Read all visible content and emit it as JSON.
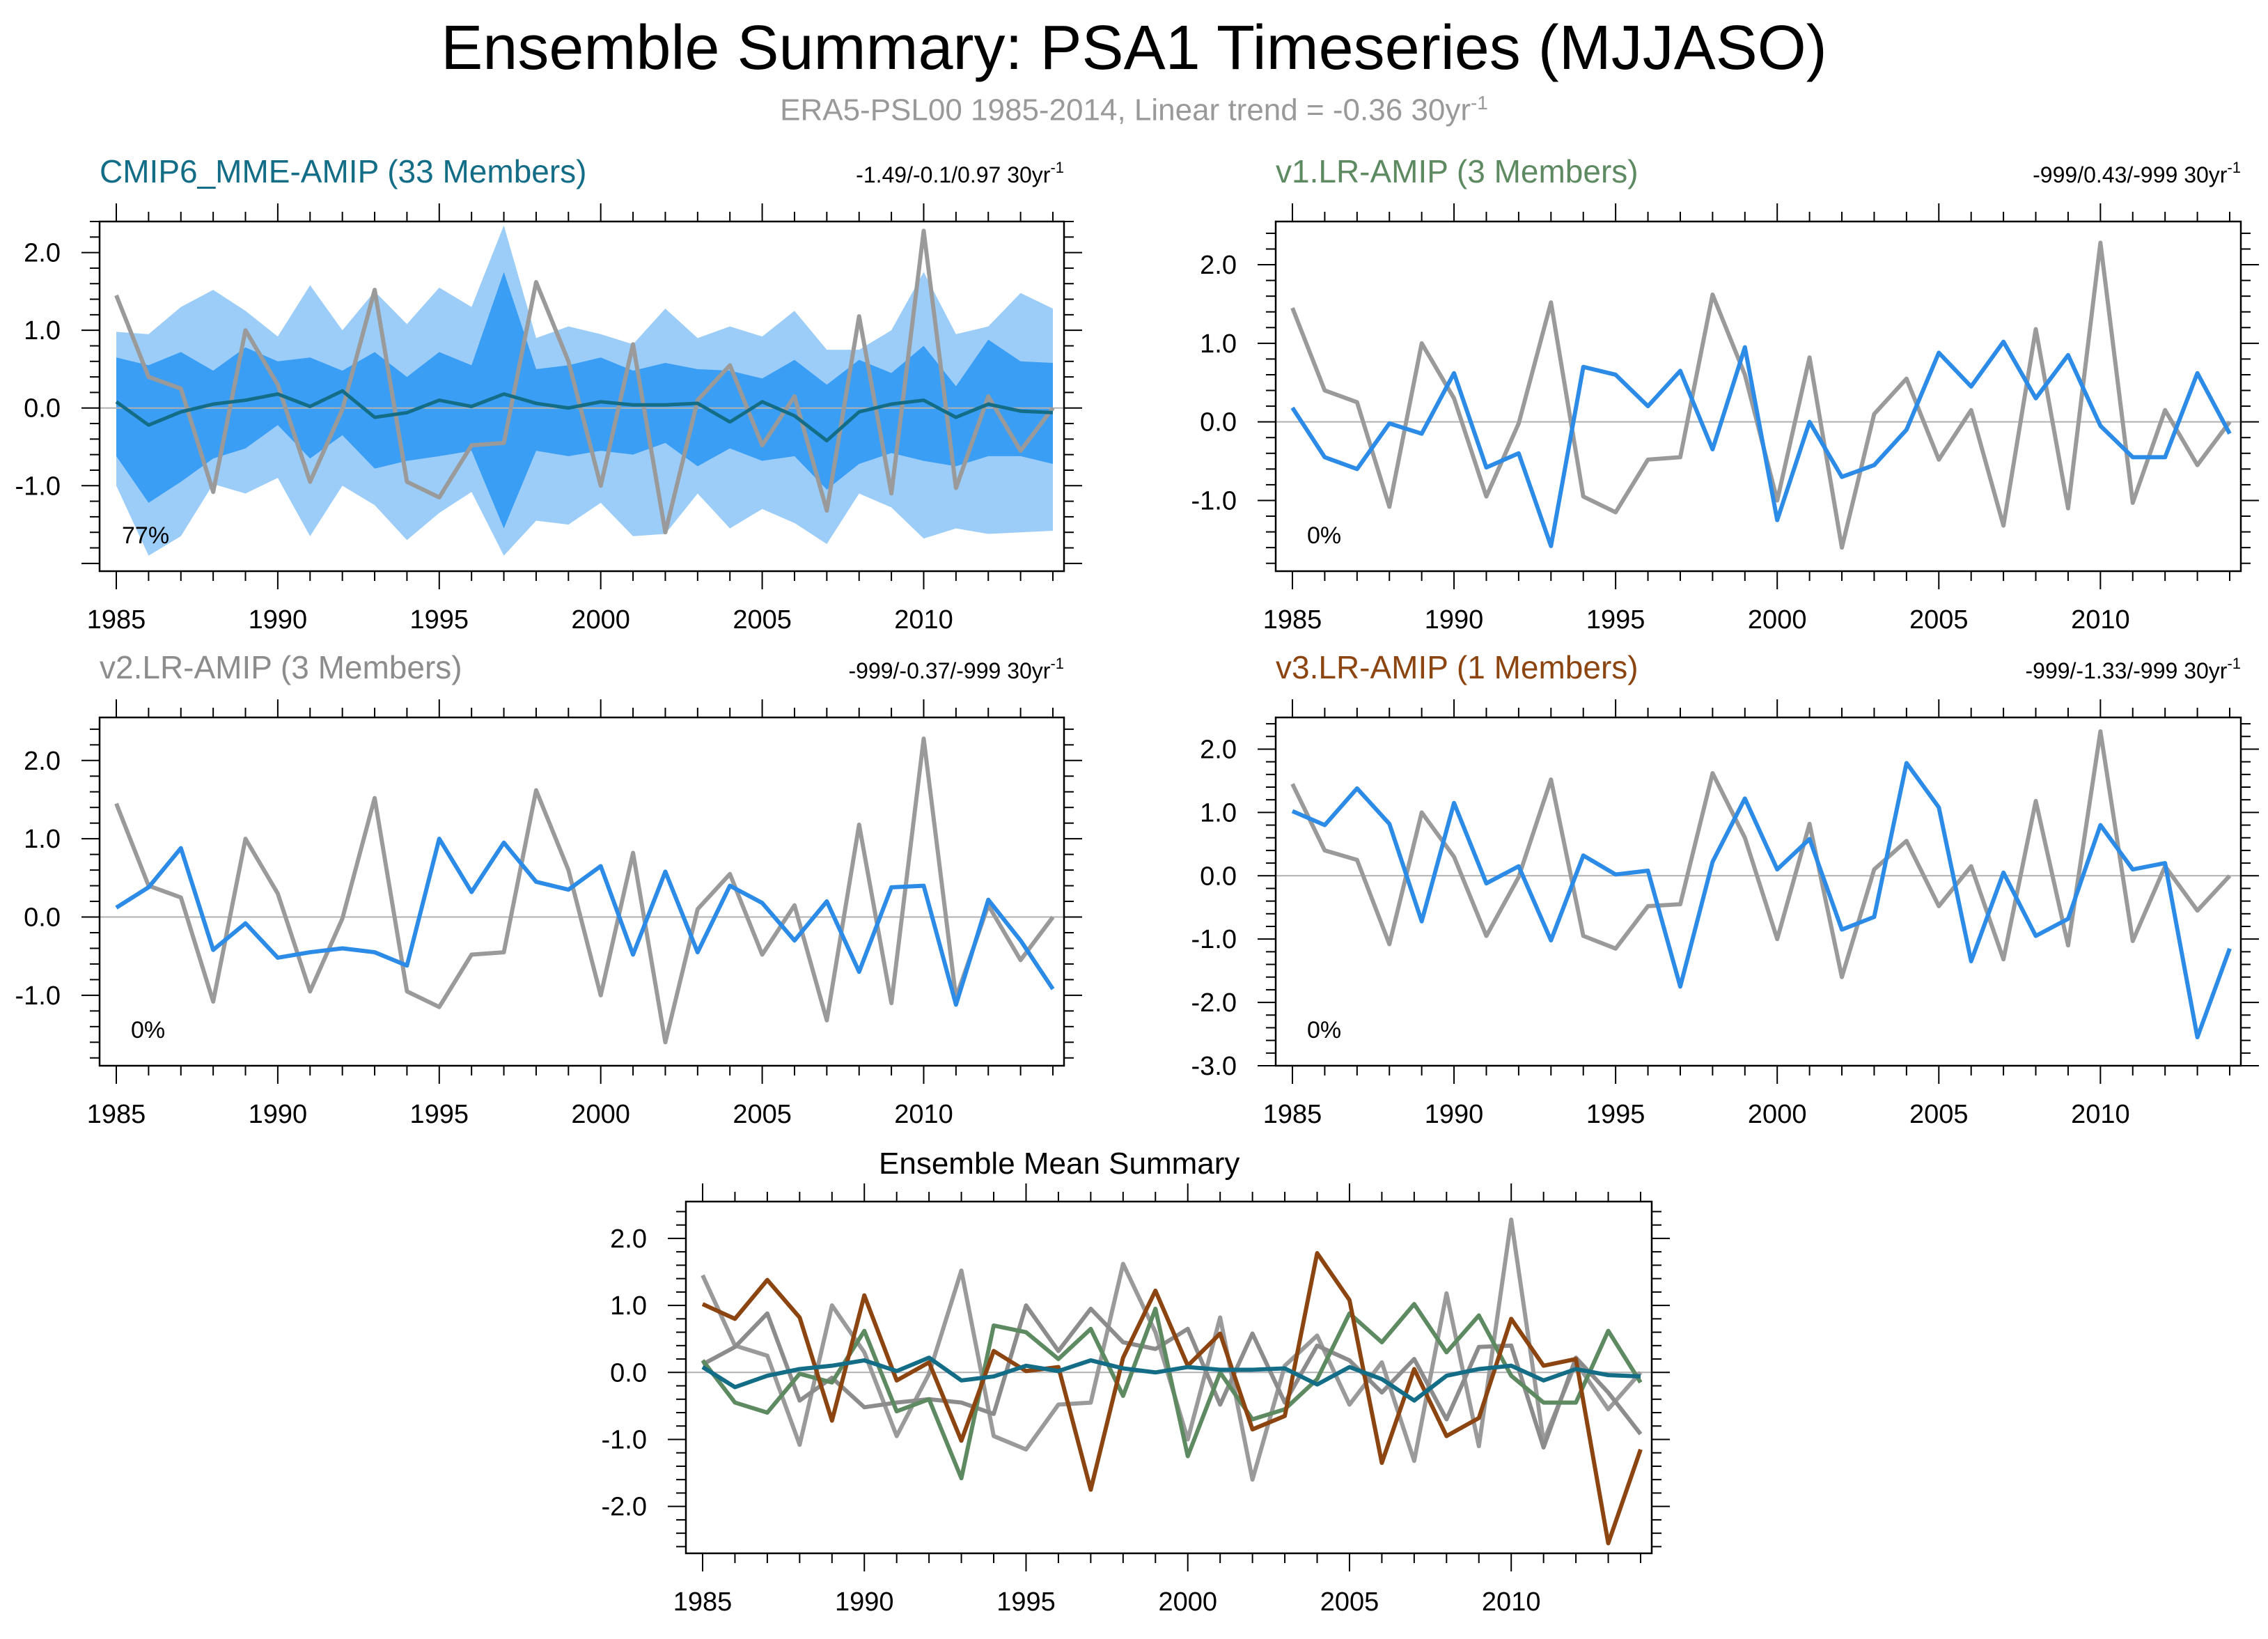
{
  "title": "Ensemble Summary: PSA1 Timeseries (MJJASO)",
  "subtitle": {
    "text": "ERA5-PSL00 1985-2014, Linear trend = -0.36 30yr",
    "sup": "-1"
  },
  "colors": {
    "observations": "#9a9a9a",
    "model": "#2b8be6",
    "cmip6": "#136d87",
    "v1": "#5e8a62",
    "v2": "#8c8c8c",
    "v3": "#8c4510",
    "band_outer": "#9ccdf8",
    "band_inner": "#3a9ef5"
  },
  "chart_data": [
    {
      "id": "cmip6",
      "type": "line",
      "title": "CMIP6_MME-AMIP (33 Members)",
      "trend_text": "-1.49/-0.1/0.97 30yr",
      "trend_sup": "-1",
      "percent_label": "77%",
      "x": [
        1985,
        1986,
        1987,
        1988,
        1989,
        1990,
        1991,
        1992,
        1993,
        1994,
        1995,
        1996,
        1997,
        1998,
        1999,
        2000,
        2001,
        2002,
        2003,
        2004,
        2005,
        2006,
        2007,
        2008,
        2009,
        2010,
        2011,
        2012,
        2013,
        2014
      ],
      "xticks": [
        "1985",
        "1990",
        "1995",
        "2000",
        "2005",
        "2010"
      ],
      "yticks": [
        "2.0",
        "1.0",
        "0.0",
        "-1.0"
      ],
      "ylim": [
        -2.1,
        2.4
      ],
      "observations": [
        1.45,
        0.4,
        0.25,
        -1.08,
        1.0,
        0.3,
        -0.95,
        -0.02,
        1.52,
        -0.95,
        -1.15,
        -0.48,
        -0.45,
        1.62,
        0.6,
        -1.0,
        0.82,
        -1.6,
        0.1,
        0.55,
        -0.48,
        0.15,
        -1.32,
        1.18,
        -1.1,
        2.28,
        -1.03,
        0.15,
        -0.55,
        0.0
      ],
      "ensemble_mean": [
        0.08,
        -0.22,
        -0.05,
        0.05,
        0.1,
        0.18,
        0.02,
        0.22,
        -0.12,
        -0.06,
        0.1,
        0.02,
        0.18,
        0.06,
        0.0,
        0.08,
        0.04,
        0.04,
        0.06,
        -0.18,
        0.08,
        -0.1,
        -0.42,
        -0.05,
        0.05,
        0.1,
        -0.12,
        0.05,
        -0.04,
        -0.06
      ],
      "band_outer_upper": [
        0.98,
        0.95,
        1.3,
        1.52,
        1.25,
        0.92,
        1.58,
        1.0,
        1.5,
        1.08,
        1.55,
        1.3,
        2.35,
        0.9,
        1.05,
        0.95,
        0.82,
        1.28,
        0.9,
        1.05,
        0.92,
        1.25,
        0.75,
        0.75,
        1.0,
        1.75,
        0.95,
        1.05,
        1.48,
        1.28
      ],
      "band_inner_upper": [
        0.65,
        0.55,
        0.72,
        0.48,
        0.78,
        0.6,
        0.65,
        0.48,
        0.72,
        0.4,
        0.72,
        0.55,
        1.75,
        0.5,
        0.55,
        0.65,
        0.48,
        0.58,
        0.5,
        0.48,
        0.38,
        0.62,
        0.3,
        0.62,
        0.45,
        0.8,
        0.28,
        0.88,
        0.6,
        0.58
      ],
      "band_inner_lower": [
        -0.62,
        -1.22,
        -0.95,
        -0.65,
        -0.52,
        -0.22,
        -0.65,
        -0.35,
        -0.78,
        -0.68,
        -0.62,
        -0.55,
        -1.55,
        -0.55,
        -0.62,
        -0.55,
        -0.6,
        -0.45,
        -0.75,
        -0.52,
        -0.68,
        -0.62,
        -1.05,
        -0.72,
        -0.58,
        -0.68,
        -0.75,
        -0.62,
        -0.62,
        -0.72
      ],
      "band_outer_lower": [
        -1.0,
        -1.9,
        -1.65,
        -0.98,
        -1.1,
        -0.9,
        -1.65,
        -1.0,
        -1.25,
        -1.7,
        -1.35,
        -1.08,
        -1.9,
        -1.45,
        -1.5,
        -1.22,
        -1.65,
        -1.62,
        -1.1,
        -1.55,
        -1.3,
        -1.48,
        -1.75,
        -1.1,
        -1.28,
        -1.68,
        -1.55,
        -1.62,
        -1.6,
        -1.58
      ]
    },
    {
      "id": "v1",
      "type": "line",
      "title": "v1.LR-AMIP (3 Members)",
      "trend_text": "-999/0.43/-999 30yr",
      "trend_sup": "-1",
      "percent_label": "0%",
      "x": [
        1985,
        1986,
        1987,
        1988,
        1989,
        1990,
        1991,
        1992,
        1993,
        1994,
        1995,
        1996,
        1997,
        1998,
        1999,
        2000,
        2001,
        2002,
        2003,
        2004,
        2005,
        2006,
        2007,
        2008,
        2009,
        2010,
        2011,
        2012,
        2013,
        2014
      ],
      "xticks": [
        "1985",
        "1990",
        "1995",
        "2000",
        "2005",
        "2010"
      ],
      "yticks": [
        "2.0",
        "1.0",
        "0.0",
        "-1.0"
      ],
      "ylim": [
        -1.9,
        2.55
      ],
      "observations": [
        1.45,
        0.4,
        0.25,
        -1.08,
        1.0,
        0.3,
        -0.95,
        -0.02,
        1.52,
        -0.95,
        -1.15,
        -0.48,
        -0.45,
        1.62,
        0.6,
        -1.0,
        0.82,
        -1.6,
        0.1,
        0.55,
        -0.48,
        0.15,
        -1.32,
        1.18,
        -1.1,
        2.28,
        -1.03,
        0.15,
        -0.55,
        0.0
      ],
      "model": [
        0.18,
        -0.45,
        -0.6,
        -0.02,
        -0.15,
        0.62,
        -0.58,
        -0.4,
        -1.58,
        0.7,
        0.6,
        0.2,
        0.65,
        -0.35,
        0.95,
        -1.25,
        0.0,
        -0.7,
        -0.55,
        -0.1,
        0.88,
        0.45,
        1.02,
        0.3,
        0.85,
        -0.05,
        -0.45,
        -0.45,
        0.62,
        -0.15
      ]
    },
    {
      "id": "v2",
      "type": "line",
      "title": "v2.LR-AMIP (3 Members)",
      "trend_text": "-999/-0.37/-999 30yr",
      "trend_sup": "-1",
      "percent_label": "0%",
      "x": [
        1985,
        1986,
        1987,
        1988,
        1989,
        1990,
        1991,
        1992,
        1993,
        1994,
        1995,
        1996,
        1997,
        1998,
        1999,
        2000,
        2001,
        2002,
        2003,
        2004,
        2005,
        2006,
        2007,
        2008,
        2009,
        2010,
        2011,
        2012,
        2013,
        2014
      ],
      "xticks": [
        "1985",
        "1990",
        "1995",
        "2000",
        "2005",
        "2010"
      ],
      "yticks": [
        "2.0",
        "1.0",
        "0.0",
        "-1.0"
      ],
      "ylim": [
        -1.9,
        2.55
      ],
      "observations": [
        1.45,
        0.4,
        0.25,
        -1.08,
        1.0,
        0.3,
        -0.95,
        -0.02,
        1.52,
        -0.95,
        -1.15,
        -0.48,
        -0.45,
        1.62,
        0.6,
        -1.0,
        0.82,
        -1.6,
        0.1,
        0.55,
        -0.48,
        0.15,
        -1.32,
        1.18,
        -1.1,
        2.28,
        -1.03,
        0.15,
        -0.55,
        0.0
      ],
      "model": [
        0.12,
        0.38,
        0.88,
        -0.42,
        -0.08,
        -0.52,
        -0.45,
        -0.4,
        -0.45,
        -0.62,
        1.0,
        0.32,
        0.95,
        0.45,
        0.35,
        0.65,
        -0.48,
        0.58,
        -0.45,
        0.4,
        0.18,
        -0.3,
        0.2,
        -0.7,
        0.38,
        0.4,
        -1.12,
        0.22,
        -0.3,
        -0.92
      ]
    },
    {
      "id": "v3",
      "type": "line",
      "title": "v3.LR-AMIP (1 Members)",
      "trend_text": "-999/-1.33/-999 30yr",
      "trend_sup": "-1",
      "percent_label": "0%",
      "x": [
        1985,
        1986,
        1987,
        1988,
        1989,
        1990,
        1991,
        1992,
        1993,
        1994,
        1995,
        1996,
        1997,
        1998,
        1999,
        2000,
        2001,
        2002,
        2003,
        2004,
        2005,
        2006,
        2007,
        2008,
        2009,
        2010,
        2011,
        2012,
        2013,
        2014
      ],
      "xticks": [
        "1985",
        "1990",
        "1995",
        "2000",
        "2005",
        "2010"
      ],
      "yticks": [
        "2.0",
        "1.0",
        "0.0",
        "-1.0",
        "-2.0",
        "-3.0"
      ],
      "ylim": [
        -3.0,
        2.5
      ],
      "observations": [
        1.45,
        0.4,
        0.25,
        -1.08,
        1.0,
        0.3,
        -0.95,
        -0.02,
        1.52,
        -0.95,
        -1.15,
        -0.48,
        -0.45,
        1.62,
        0.6,
        -1.0,
        0.82,
        -1.6,
        0.1,
        0.55,
        -0.48,
        0.15,
        -1.32,
        1.18,
        -1.1,
        2.28,
        -1.03,
        0.15,
        -0.55,
        0.0
      ],
      "model": [
        1.02,
        0.8,
        1.38,
        0.82,
        -0.72,
        1.15,
        -0.12,
        0.15,
        -1.02,
        0.32,
        0.02,
        0.08,
        -1.75,
        0.22,
        1.22,
        0.1,
        0.58,
        -0.85,
        -0.65,
        1.78,
        1.08,
        -1.35,
        0.05,
        -0.95,
        -0.68,
        0.8,
        0.1,
        0.2,
        -2.55,
        -1.15
      ]
    },
    {
      "id": "mean",
      "type": "line",
      "title": "Ensemble Mean Summary",
      "x": [
        1985,
        1986,
        1987,
        1988,
        1989,
        1990,
        1991,
        1992,
        1993,
        1994,
        1995,
        1996,
        1997,
        1998,
        1999,
        2000,
        2001,
        2002,
        2003,
        2004,
        2005,
        2006,
        2007,
        2008,
        2009,
        2010,
        2011,
        2012,
        2013,
        2014
      ],
      "xticks": [
        "1985",
        "1990",
        "1995",
        "2000",
        "2005",
        "2010"
      ],
      "yticks": [
        "2.0",
        "1.0",
        "0.0",
        "-1.0",
        "-2.0"
      ],
      "ylim": [
        -2.7,
        2.55
      ],
      "series": [
        {
          "key": "obs",
          "color": "#9a9a9a",
          "values": [
            1.45,
            0.4,
            0.25,
            -1.08,
            1.0,
            0.3,
            -0.95,
            -0.02,
            1.52,
            -0.95,
            -1.15,
            -0.48,
            -0.45,
            1.62,
            0.6,
            -1.0,
            0.82,
            -1.6,
            0.1,
            0.55,
            -0.48,
            0.15,
            -1.32,
            1.18,
            -1.1,
            2.28,
            -1.03,
            0.15,
            -0.55,
            0.0
          ]
        },
        {
          "key": "v2",
          "color": "#8c8c8c",
          "values": [
            0.12,
            0.38,
            0.88,
            -0.42,
            -0.08,
            -0.52,
            -0.45,
            -0.4,
            -0.45,
            -0.62,
            1.0,
            0.32,
            0.95,
            0.45,
            0.35,
            0.65,
            -0.48,
            0.58,
            -0.45,
            0.4,
            0.18,
            -0.3,
            0.2,
            -0.7,
            0.38,
            0.4,
            -1.12,
            0.22,
            -0.3,
            -0.92
          ]
        },
        {
          "key": "v1",
          "color": "#5e8a62",
          "values": [
            0.18,
            -0.45,
            -0.6,
            -0.02,
            -0.15,
            0.62,
            -0.58,
            -0.4,
            -1.58,
            0.7,
            0.6,
            0.2,
            0.65,
            -0.35,
            0.95,
            -1.25,
            0.0,
            -0.7,
            -0.55,
            -0.1,
            0.88,
            0.45,
            1.02,
            0.3,
            0.85,
            -0.05,
            -0.45,
            -0.45,
            0.62,
            -0.15
          ]
        },
        {
          "key": "v3",
          "color": "#8c4510",
          "values": [
            1.02,
            0.8,
            1.38,
            0.82,
            -0.72,
            1.15,
            -0.12,
            0.15,
            -1.02,
            0.32,
            0.02,
            0.08,
            -1.75,
            0.22,
            1.22,
            0.1,
            0.58,
            -0.85,
            -0.65,
            1.78,
            1.08,
            -1.35,
            0.05,
            -0.95,
            -0.68,
            0.8,
            0.1,
            0.2,
            -2.55,
            -1.15
          ]
        },
        {
          "key": "cmip6",
          "color": "#136d87",
          "values": [
            0.08,
            -0.22,
            -0.05,
            0.05,
            0.1,
            0.18,
            0.02,
            0.22,
            -0.12,
            -0.06,
            0.1,
            0.02,
            0.18,
            0.06,
            0.0,
            0.08,
            0.04,
            0.04,
            0.06,
            -0.18,
            0.08,
            -0.1,
            -0.42,
            -0.05,
            0.05,
            0.1,
            -0.12,
            0.05,
            -0.04,
            -0.06
          ]
        }
      ]
    }
  ]
}
